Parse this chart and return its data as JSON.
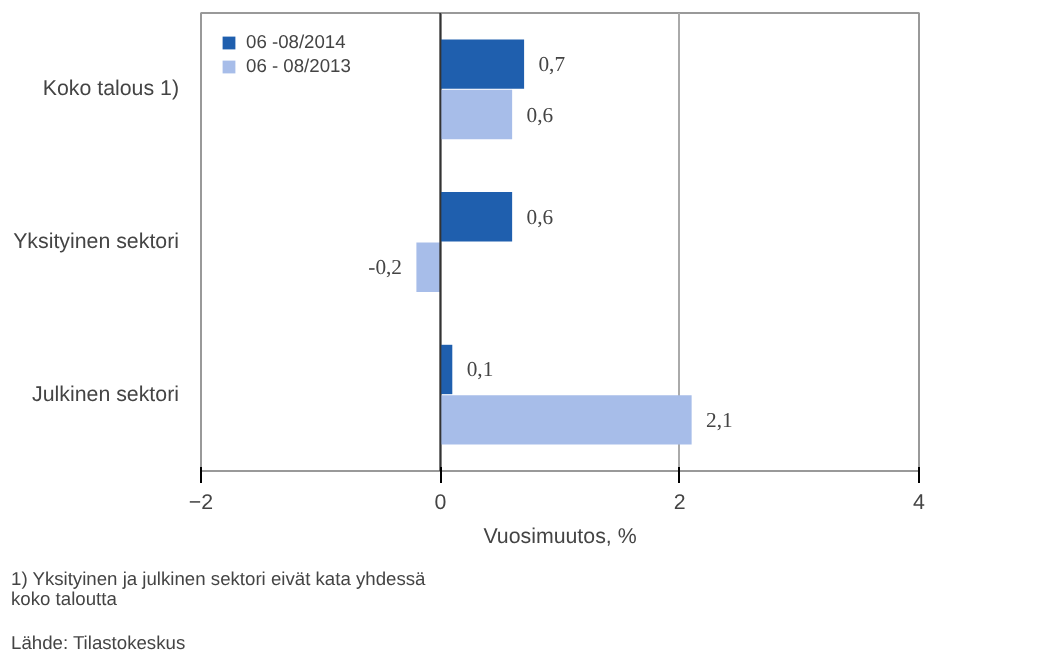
{
  "chart_data": {
    "type": "bar",
    "orientation": "horizontal",
    "categories": [
      "Koko talous 1)",
      "Yksityinen sektori",
      "Julkinen sektori"
    ],
    "series": [
      {
        "name": "06 -08/2014",
        "color": "#1f5fae",
        "values": [
          0.7,
          0.6,
          0.1
        ],
        "value_labels": [
          "0,7",
          "0,6",
          "0,1"
        ]
      },
      {
        "name": "06 - 08/2013",
        "color": "#a7bde9",
        "values": [
          0.6,
          -0.2,
          2.1
        ],
        "value_labels": [
          "0,6",
          "-0,2",
          "2,1"
        ]
      }
    ],
    "xlim": [
      -2,
      4
    ],
    "xticks": [
      -2,
      0,
      2,
      4
    ],
    "xlabel": "Vuosimuutos, %",
    "grid": "x",
    "legend": "top left",
    "annotations": [
      "1) Yksityinen ja julkinen sektori eivät kata yhdessä\nkoko taloutta",
      "Lähde: Tilastokeskus"
    ]
  }
}
